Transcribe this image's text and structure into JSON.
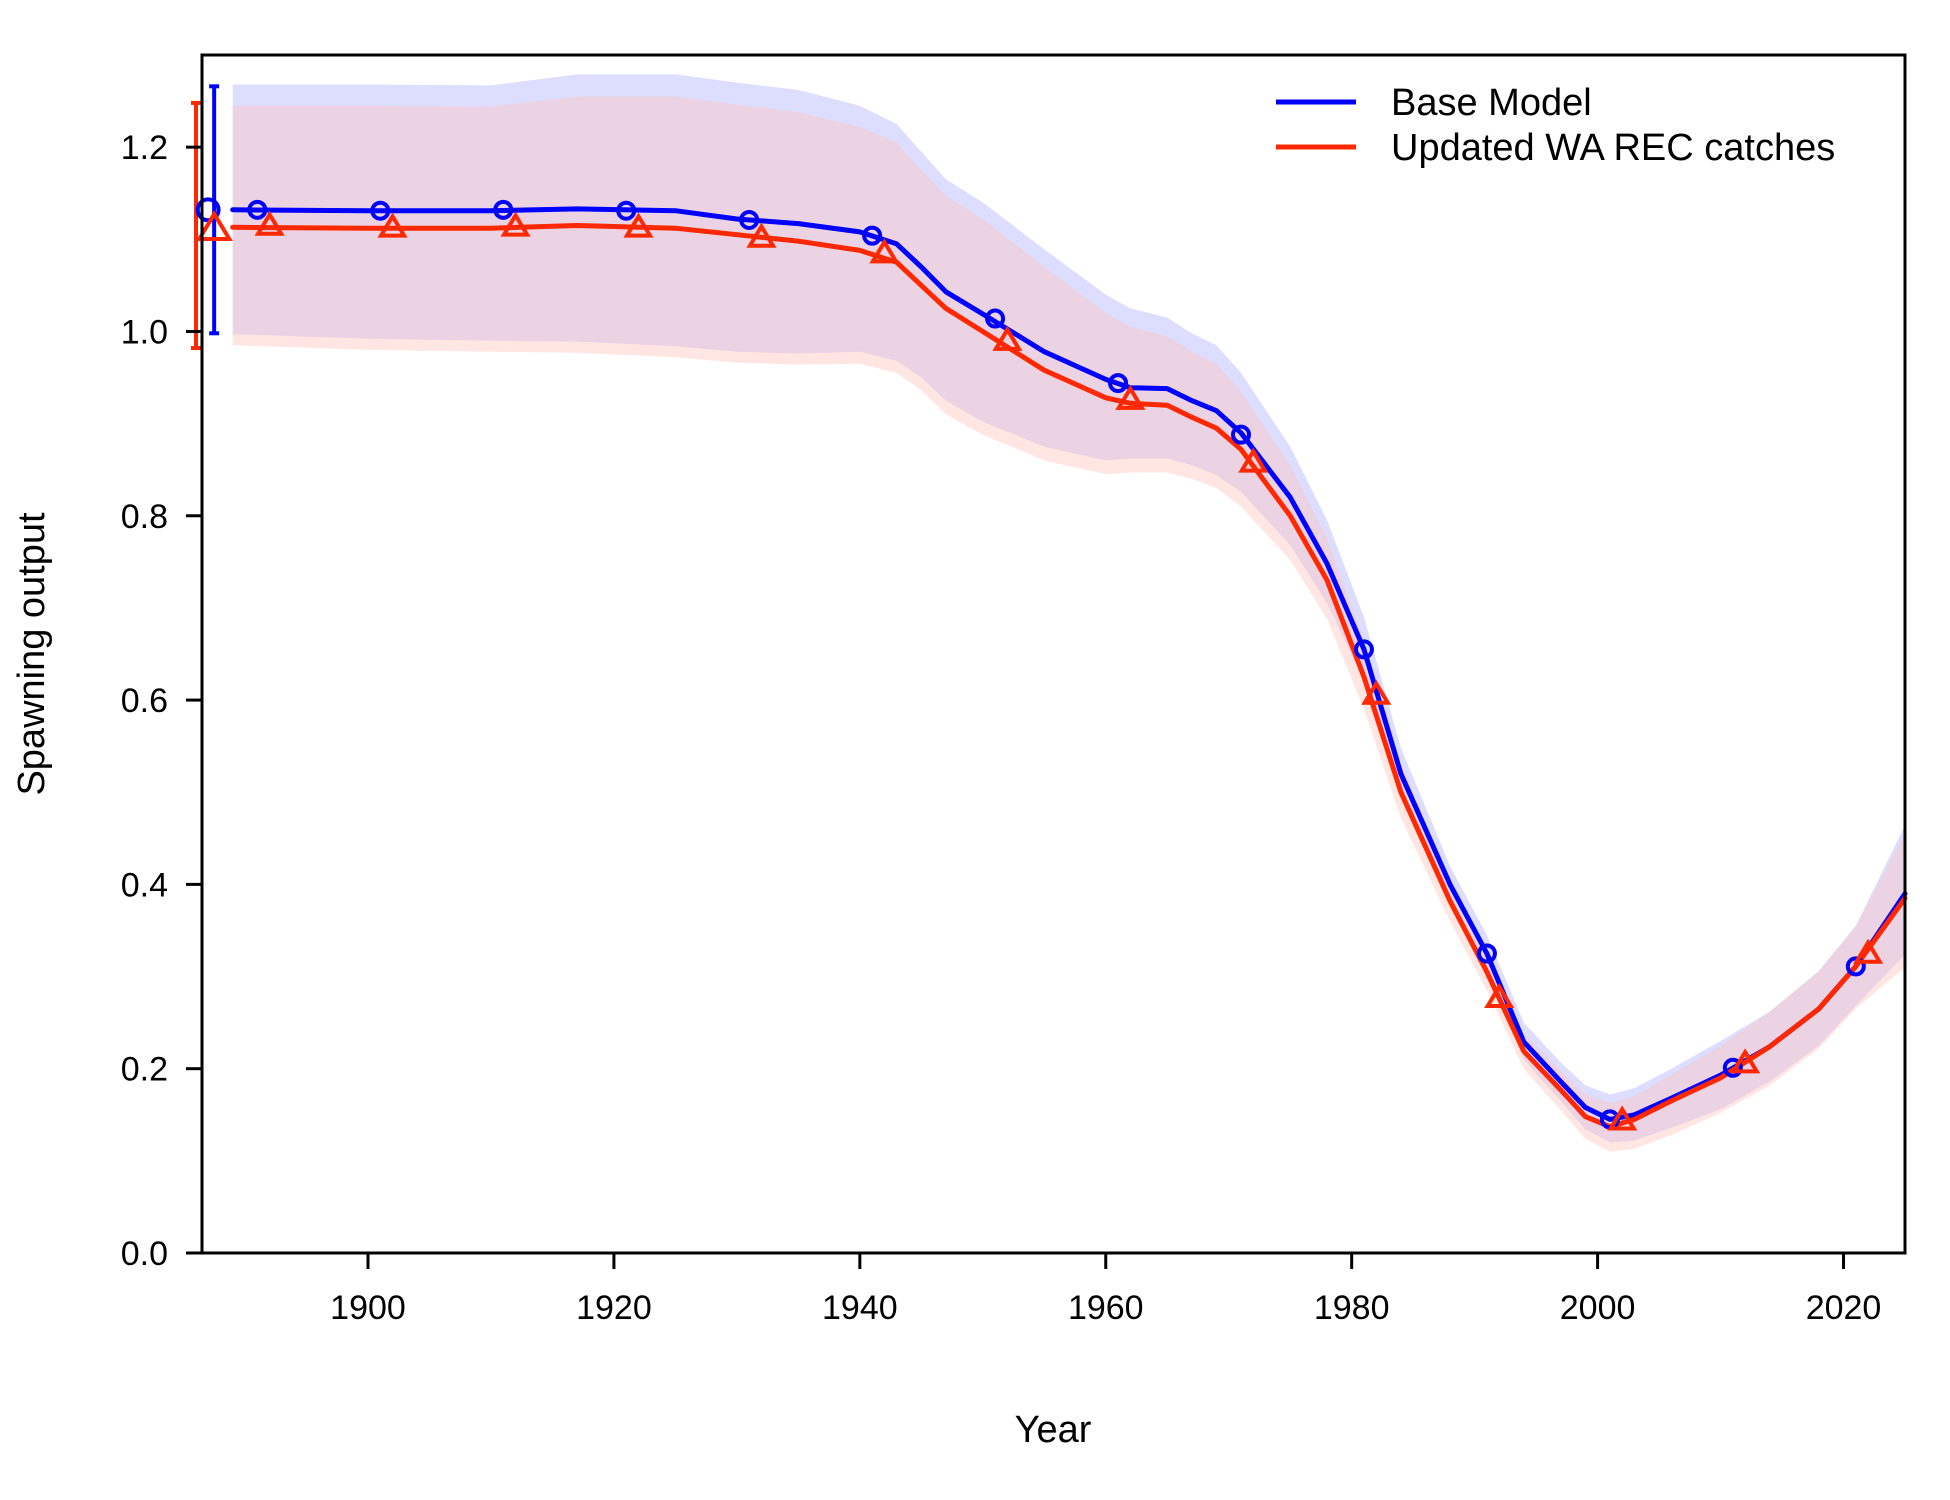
{
  "chart_data": {
    "type": "line",
    "title": "",
    "xlabel": "Year",
    "ylabel": "Spawning output",
    "xlim": [
      1886.5,
      2025
    ],
    "ylim": [
      -0.0,
      1.3
    ],
    "x_ticks": [
      1900,
      1920,
      1940,
      1960,
      1980,
      2000,
      2020
    ],
    "x_tick_labels": [
      "1900",
      "1920",
      "1940",
      "1960",
      "1980",
      "2000",
      "2020"
    ],
    "y_ticks": [
      0.0,
      0.2,
      0.4,
      0.6,
      0.8,
      1.0,
      1.2
    ],
    "y_tick_labels": [
      "0.0",
      "0.2",
      "0.4",
      "0.6",
      "0.8",
      "1.0",
      "1.2"
    ],
    "grid": false,
    "legend": "top-right",
    "series": [
      {
        "name": "Base Model",
        "color": "#0000ff",
        "band_color": "#b4b4ff",
        "marker": "circle",
        "initial": {
          "year": 1887,
          "value": 1.132,
          "lower": 0.998,
          "upper": 1.266
        },
        "x": [
          1889,
          1900,
          1910,
          1917,
          1925,
          1930,
          1935,
          1940,
          1943,
          1945,
          1947,
          1950,
          1955,
          1960,
          1962,
          1965,
          1967,
          1969,
          1971,
          1975,
          1978,
          1981,
          1984,
          1988,
          1991,
          1994,
          1997,
          1999,
          2001,
          2003,
          2006,
          2010,
          2014,
          2018,
          2021,
          2025
        ],
        "values": [
          1.132,
          1.131,
          1.131,
          1.133,
          1.131,
          1.122,
          1.117,
          1.108,
          1.095,
          1.07,
          1.043,
          1.019,
          0.978,
          0.948,
          0.939,
          0.938,
          0.925,
          0.914,
          0.89,
          0.82,
          0.748,
          0.655,
          0.52,
          0.4,
          0.325,
          0.229,
          0.186,
          0.158,
          0.145,
          0.15,
          0.168,
          0.193,
          0.224,
          0.265,
          0.311,
          0.39
        ],
        "lower": [
          0.997,
          0.992,
          0.99,
          0.989,
          0.984,
          0.978,
          0.976,
          0.978,
          0.968,
          0.95,
          0.925,
          0.902,
          0.875,
          0.86,
          0.862,
          0.862,
          0.855,
          0.844,
          0.826,
          0.768,
          0.705,
          0.62,
          0.495,
          0.38,
          0.305,
          0.21,
          0.165,
          0.134,
          0.12,
          0.122,
          0.136,
          0.156,
          0.186,
          0.225,
          0.268,
          0.324
        ],
        "upper": [
          1.268,
          1.268,
          1.267,
          1.279,
          1.279,
          1.27,
          1.262,
          1.245,
          1.225,
          1.195,
          1.165,
          1.14,
          1.089,
          1.04,
          1.025,
          1.015,
          0.998,
          0.985,
          0.955,
          0.875,
          0.795,
          0.69,
          0.548,
          0.42,
          0.345,
          0.25,
          0.207,
          0.182,
          0.172,
          0.179,
          0.2,
          0.23,
          0.262,
          0.306,
          0.355,
          0.464
        ],
        "marker_x": [
          1887,
          1891,
          1901,
          1911,
          1921,
          1931,
          1941,
          1951,
          1961,
          1971,
          1981,
          1991,
          2001,
          2011,
          2021
        ],
        "marker_y": [
          1.132,
          1.132,
          1.131,
          1.132,
          1.131,
          1.121,
          1.104,
          1.014,
          0.944,
          0.888,
          0.655,
          0.325,
          0.145,
          0.201,
          0.311
        ]
      },
      {
        "name": "Updated WA REC catches",
        "color": "#ff2800",
        "band_color": "#ffc8c0",
        "marker": "triangle",
        "initial": {
          "year": 1886.5,
          "value": 1.112,
          "lower": 0.982,
          "upper": 1.248
        },
        "x": [
          1889,
          1900,
          1910,
          1917,
          1925,
          1930,
          1935,
          1940,
          1943,
          1945,
          1947,
          1950,
          1955,
          1960,
          1962,
          1965,
          1967,
          1969,
          1971,
          1975,
          1978,
          1981,
          1984,
          1988,
          1991,
          1994,
          1997,
          1999,
          2001,
          2003,
          2006,
          2010,
          2014,
          2018,
          2021,
          2025
        ],
        "values": [
          1.113,
          1.112,
          1.112,
          1.115,
          1.112,
          1.105,
          1.098,
          1.088,
          1.075,
          1.05,
          1.025,
          1.0,
          0.958,
          0.928,
          0.922,
          0.92,
          0.907,
          0.895,
          0.872,
          0.8,
          0.73,
          0.625,
          0.5,
          0.382,
          0.305,
          0.219,
          0.177,
          0.148,
          0.137,
          0.145,
          0.165,
          0.19,
          0.224,
          0.265,
          0.311,
          0.385
        ],
        "lower": [
          0.985,
          0.98,
          0.978,
          0.977,
          0.972,
          0.966,
          0.964,
          0.965,
          0.955,
          0.936,
          0.91,
          0.888,
          0.86,
          0.845,
          0.847,
          0.847,
          0.84,
          0.83,
          0.81,
          0.752,
          0.688,
          0.59,
          0.472,
          0.36,
          0.285,
          0.2,
          0.155,
          0.124,
          0.11,
          0.113,
          0.128,
          0.152,
          0.182,
          0.222,
          0.265,
          0.31
        ],
        "upper": [
          1.245,
          1.245,
          1.244,
          1.255,
          1.255,
          1.246,
          1.238,
          1.222,
          1.205,
          1.175,
          1.147,
          1.122,
          1.07,
          1.02,
          1.005,
          0.995,
          0.978,
          0.965,
          0.935,
          0.855,
          0.775,
          0.665,
          0.53,
          0.405,
          0.325,
          0.238,
          0.198,
          0.172,
          0.163,
          0.17,
          0.194,
          0.225,
          0.262,
          0.306,
          0.355,
          0.455
        ],
        "marker_x": [
          1887.5,
          1892,
          1902,
          1912,
          1922,
          1932,
          1942,
          1952,
          1962,
          1972,
          1982,
          1992,
          2002,
          2012,
          2022
        ],
        "marker_y": [
          1.112,
          1.115,
          1.113,
          1.114,
          1.113,
          1.102,
          1.085,
          0.99,
          0.926,
          0.858,
          0.606,
          0.277,
          0.144,
          0.206,
          0.325
        ]
      }
    ]
  }
}
